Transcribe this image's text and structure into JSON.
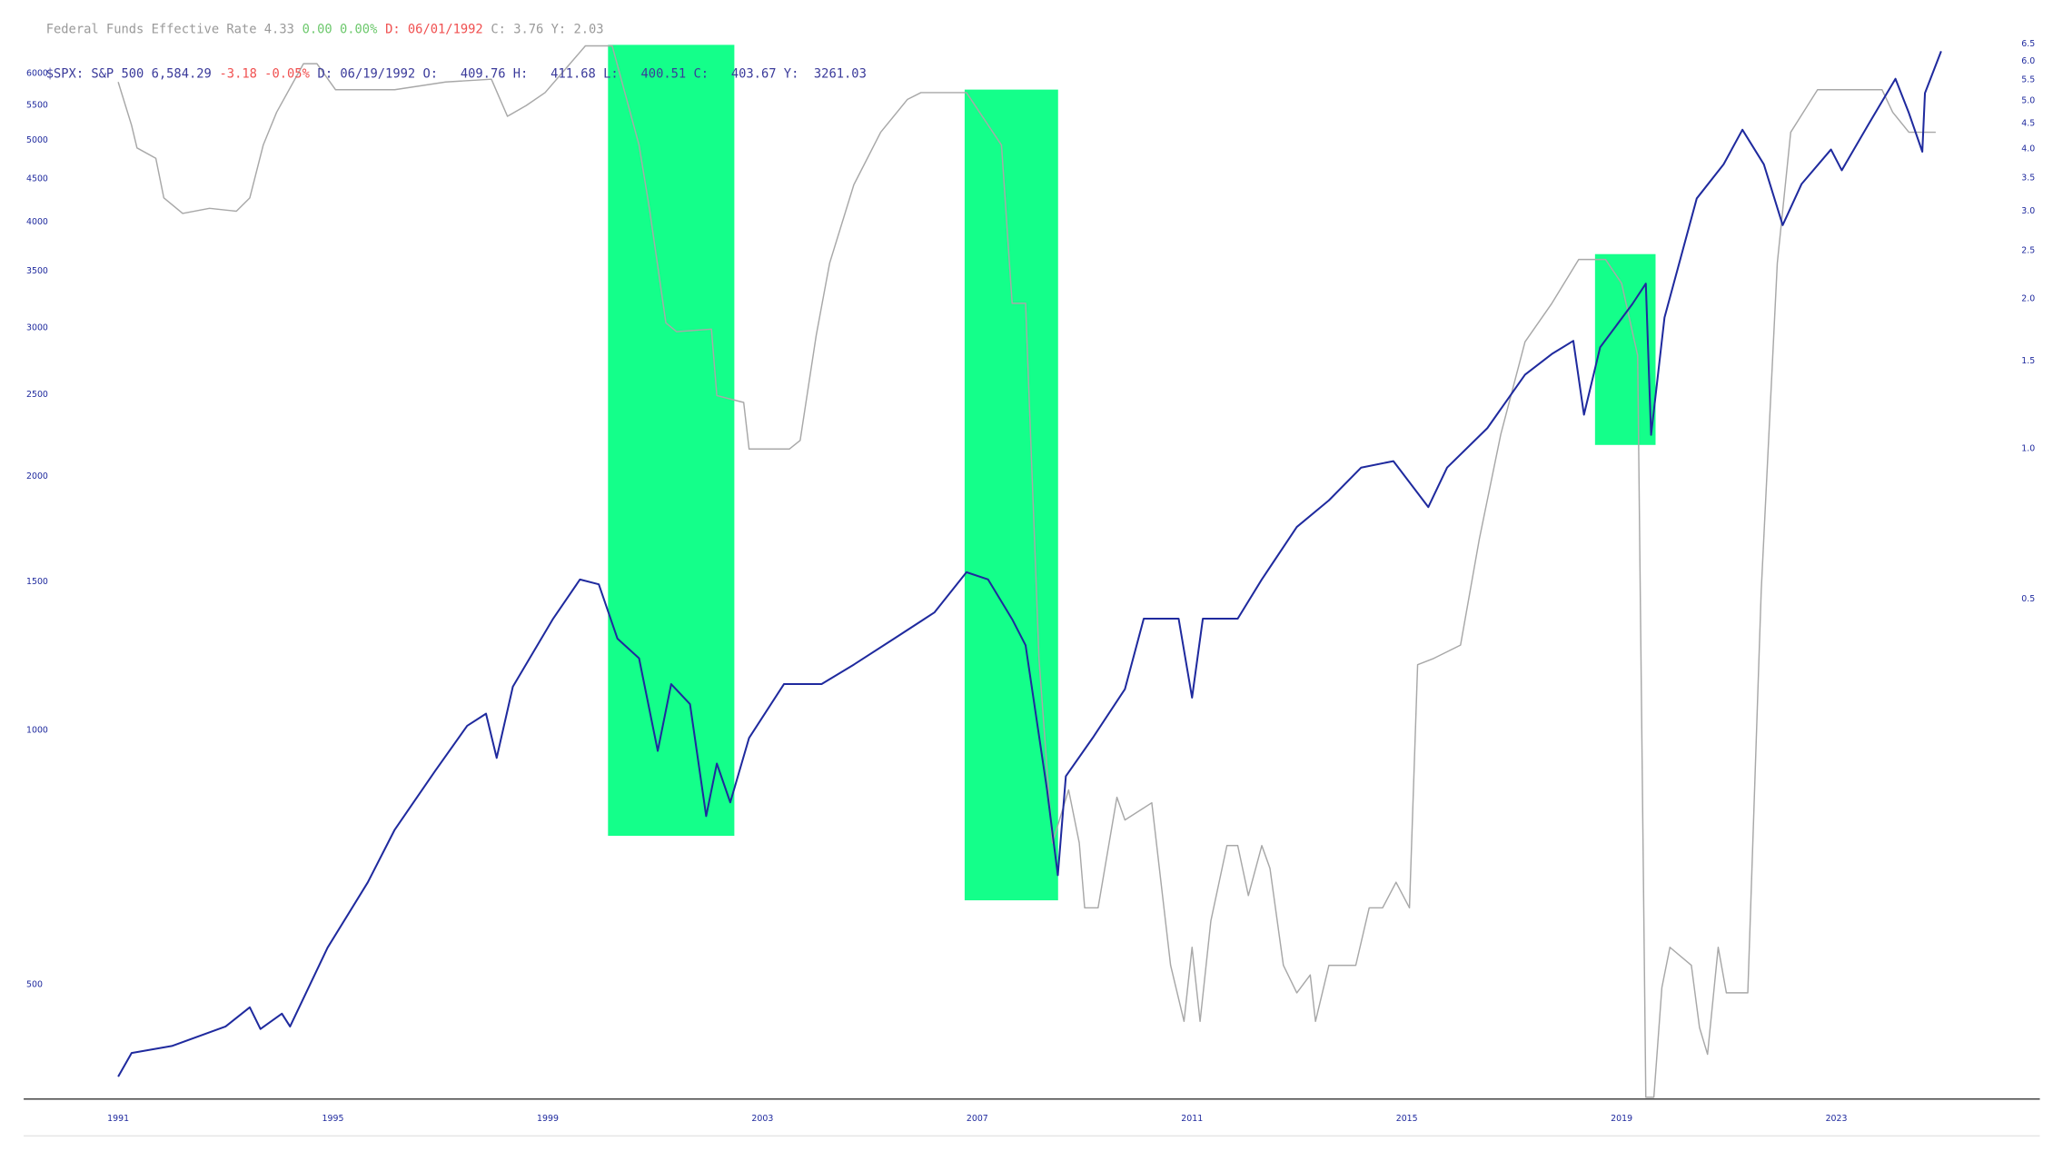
{
  "chart_data": {
    "type": "line",
    "info_lines": [
      [
        {
          "text": "Federal Funds Effective Rate 4.33",
          "color": "#9a9a9a"
        },
        {
          "text": "0.00 0.00%",
          "color": "#6cc86c"
        },
        {
          "text": "D: 06/01/1992",
          "color": "#f05050"
        },
        {
          "text": "C: 3.76 Y: 2.03",
          "color": "#9a9a9a"
        }
      ],
      [
        {
          "text": "$SPX: S&P 500 6,584.29",
          "color": "#3a3a9a"
        },
        {
          "text": "-3.18 -0.05%",
          "color": "#f05050"
        },
        {
          "text": "D: 06/19/1992 O:   409.76 H:   411.68 L:   400.51 C:   403.67 Y:  3261.03",
          "color": "#3a3a9a"
        }
      ]
    ],
    "xlim": [
      1989.24,
      2026.74
    ],
    "xticks": [
      1991,
      1995,
      1999,
      2003,
      2007,
      2011,
      2015,
      2019,
      2023
    ],
    "ylim": [
      366,
      6585
    ],
    "yticks": [
      500,
      1000,
      1500,
      2000,
      2500,
      3000,
      3500,
      4000,
      4500,
      5000,
      5500,
      6000
    ],
    "y2lim": [
      0.0496,
      6.63
    ],
    "y2ticks": [
      0.5,
      {
        "value": 1,
        "label": "1.0"
      },
      1.5,
      {
        "value": 2,
        "label": "2.0"
      },
      2.5,
      {
        "value": 3,
        "label": "3.0"
      },
      3.5,
      {
        "value": 4,
        "label": "4.0"
      },
      4.5,
      {
        "value": 5,
        "label": "5.0"
      },
      5.5,
      {
        "value": 6,
        "label": "6.0"
      },
      6.5
    ],
    "log_scale": true,
    "series": [
      {
        "name": "Federal Funds Effective Rate",
        "color": "#a8a8a8",
        "axis": "y2",
        "x": [
          1991.0,
          1991.25,
          1991.35,
          1991.7,
          1991.85,
          1992.2,
          1992.7,
          1993.2,
          1993.45,
          1993.7,
          1993.95,
          1994.45,
          1994.7,
          1995.05,
          1995.4,
          1996.15,
          1997.1,
          1997.95,
          1998.25,
          1998.6,
          1998.95,
          1999.7,
          2000.2,
          2000.7,
          2000.9,
          2001.2,
          2001.4,
          2002.05,
          2002.15,
          2002.65,
          2002.75,
          2003.5,
          2003.7,
          2004.0,
          2004.25,
          2004.7,
          2005.2,
          2005.7,
          2005.95,
          2006.8,
          2007.45,
          2007.65,
          2007.9,
          2008.15,
          2008.4,
          2008.7,
          2008.9,
          2009.0,
          2009.25,
          2009.6,
          2009.75,
          2010.25,
          2010.6,
          2010.85,
          2011.0,
          2011.15,
          2011.35,
          2011.65,
          2011.85,
          2012.05,
          2012.3,
          2012.45,
          2012.7,
          2012.95,
          2013.2,
          2013.3,
          2013.55,
          2014.05,
          2014.3,
          2014.55,
          2014.8,
          2015.05,
          2015.2,
          2015.5,
          2016.0,
          2016.35,
          2016.75,
          2017.2,
          2017.7,
          2018.2,
          2018.7,
          2019.0,
          2019.3,
          2019.45,
          2019.6,
          2019.75,
          2019.9,
          2020.3,
          2020.45,
          2020.6,
          2020.8,
          2020.95,
          2021.35,
          2021.6,
          2021.9,
          2022.15,
          2022.65,
          2023.85,
          2024.05,
          2024.35,
          2024.85
        ],
        "values": [
          5.45,
          4.46,
          4.02,
          3.83,
          3.19,
          2.97,
          3.04,
          3.0,
          3.19,
          4.07,
          4.74,
          5.93,
          5.93,
          5.26,
          5.26,
          5.26,
          5.45,
          5.52,
          4.65,
          4.89,
          5.19,
          6.44,
          6.44,
          4.07,
          3.01,
          1.79,
          1.72,
          1.74,
          1.28,
          1.24,
          1.0,
          1.0,
          1.04,
          1.69,
          2.36,
          3.39,
          4.32,
          5.03,
          5.19,
          5.19,
          4.07,
          1.96,
          1.96,
          0.38,
          0.162,
          0.207,
          0.162,
          0.12,
          0.12,
          0.2,
          0.18,
          0.195,
          0.092,
          0.071,
          0.1,
          0.071,
          0.113,
          0.16,
          0.16,
          0.127,
          0.16,
          0.144,
          0.092,
          0.081,
          0.088,
          0.071,
          0.092,
          0.092,
          0.12,
          0.12,
          0.135,
          0.12,
          0.369,
          0.38,
          0.404,
          0.66,
          1.07,
          1.64,
          1.96,
          2.4,
          2.4,
          2.15,
          1.54,
          0.05,
          0.05,
          0.083,
          0.1,
          0.092,
          0.069,
          0.061,
          0.1,
          0.081,
          0.081,
          0.52,
          2.36,
          4.32,
          5.26,
          5.26,
          4.74,
          4.32,
          4.32
        ]
      },
      {
        "name": "$SPX: S&P 500",
        "color": "#1f2a9e",
        "axis": "y",
        "x": [
          1991.0,
          1991.25,
          1992.0,
          1993.0,
          1993.45,
          1993.65,
          1994.05,
          1994.2,
          1994.9,
          1995.65,
          1996.15,
          1996.9,
          1997.5,
          1997.85,
          1998.05,
          1998.35,
          1999.1,
          1999.6,
          1999.95,
          2000.3,
          2000.7,
          2001.05,
          2001.3,
          2001.65,
          2001.95,
          2002.15,
          2002.4,
          2002.75,
          2003.4,
          2004.1,
          2004.7,
          2005.45,
          2006.2,
          2006.8,
          2007.2,
          2007.65,
          2007.9,
          2008.3,
          2008.5,
          2008.65,
          2009.15,
          2009.75,
          2010.1,
          2010.75,
          2011.0,
          2011.2,
          2011.85,
          2012.3,
          2012.95,
          2013.55,
          2014.15,
          2014.75,
          2015.4,
          2015.75,
          2016.5,
          2017.2,
          2017.7,
          2018.1,
          2018.3,
          2018.6,
          2019.2,
          2019.45,
          2019.55,
          2019.8,
          2020.4,
          2020.9,
          2021.25,
          2021.65,
          2022.0,
          2022.35,
          2022.9,
          2023.1,
          2023.6,
          2024.1,
          2024.35,
          2024.6,
          2024.65,
          2024.95
        ],
        "values": [
          389,
          415,
          423,
          446,
          470,
          443,
          462,
          446,
          553,
          661,
          763,
          895,
          1013,
          1047,
          928,
          1127,
          1357,
          1510,
          1490,
          1285,
          1218,
          946,
          1135,
          1075,
          792,
          914,
          822,
          980,
          1135,
          1135,
          1197,
          1285,
          1380,
          1540,
          1510,
          1355,
          1262,
          851,
          674,
          883,
          980,
          1120,
          1357,
          1357,
          1094,
          1357,
          1357,
          1510,
          1743,
          1874,
          2049,
          2085,
          1840,
          2049,
          2282,
          2640,
          2793,
          2895,
          2367,
          2845,
          3201,
          3385,
          2240,
          3085,
          4270,
          4685,
          5150,
          4685,
          3970,
          4440,
          4880,
          4610,
          5230,
          5917,
          5390,
          4850,
          5690,
          6380
        ]
      }
    ]
  }
}
